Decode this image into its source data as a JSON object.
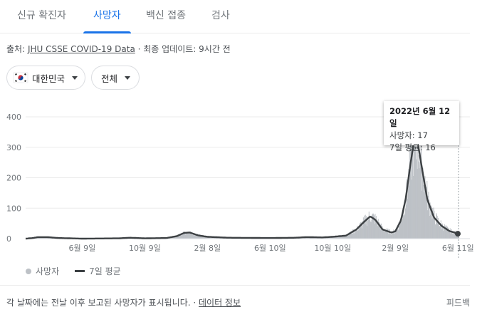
{
  "tabs": [
    {
      "label": "신규 확진자",
      "active": false
    },
    {
      "label": "사망자",
      "active": true
    },
    {
      "label": "백신 접종",
      "active": false
    },
    {
      "label": "검사",
      "active": false
    }
  ],
  "source": {
    "prefix": "출처: ",
    "link": "JHU CSSE COVID-19 Data",
    "updated": " · 최종 업데이트: 9시간 전"
  },
  "filters": {
    "region": "대한민국",
    "period": "전체"
  },
  "tooltip": {
    "date": "2022년 6월 12일",
    "deaths": "사망자: 17",
    "avg": "7일 평균: 16"
  },
  "legend": {
    "bars": "사망자",
    "line": "7일 평균"
  },
  "footer": {
    "note": "각 날짜에는 전날 이후 보고된 사망자가 표시됩니다. · ",
    "link": "데이터 정보",
    "feedback": "피드백"
  },
  "colors": {
    "accent": "#1a73e8",
    "bar": "#bdc1c6",
    "line": "#3c4043"
  },
  "chart_data": {
    "type": "bar",
    "series": [
      {
        "name": "사망자",
        "kind": "bar"
      },
      {
        "name": "7일 평균",
        "kind": "line"
      }
    ],
    "y_ticks": [
      "0",
      "100",
      "200",
      "300",
      "400"
    ],
    "ylim": [
      0,
      400
    ],
    "x_ticks": [
      "6월 9일",
      "10월 9일",
      "2월 8일",
      "6월 10일",
      "10월 10일",
      "2월 9일",
      "6월 11일"
    ],
    "x_tick_dates": [
      "2020-06-09",
      "2020-10-09",
      "2021-02-08",
      "2021-06-10",
      "2021-10-10",
      "2022-02-09",
      "2022-06-11"
    ],
    "xlim": [
      "2020-02-20",
      "2022-06-12"
    ],
    "avg_points": [
      [
        "2020-02-20",
        0
      ],
      [
        "2020-03-05",
        2
      ],
      [
        "2020-03-15",
        5
      ],
      [
        "2020-04-01",
        5
      ],
      [
        "2020-04-25",
        2
      ],
      [
        "2020-06-09",
        0
      ],
      [
        "2020-08-20",
        1
      ],
      [
        "2020-09-10",
        3
      ],
      [
        "2020-10-09",
        1
      ],
      [
        "2020-11-20",
        2
      ],
      [
        "2020-12-10",
        8
      ],
      [
        "2020-12-25",
        19
      ],
      [
        "2021-01-05",
        20
      ],
      [
        "2021-01-20",
        11
      ],
      [
        "2021-02-08",
        6
      ],
      [
        "2021-03-20",
        3
      ],
      [
        "2021-06-10",
        2
      ],
      [
        "2021-07-30",
        3
      ],
      [
        "2021-08-20",
        5
      ],
      [
        "2021-09-20",
        4
      ],
      [
        "2021-10-10",
        6
      ],
      [
        "2021-11-05",
        10
      ],
      [
        "2021-11-25",
        30
      ],
      [
        "2021-12-10",
        55
      ],
      [
        "2021-12-22",
        73
      ],
      [
        "2022-01-01",
        62
      ],
      [
        "2022-01-15",
        30
      ],
      [
        "2022-02-01",
        20
      ],
      [
        "2022-02-09",
        24
      ],
      [
        "2022-02-20",
        60
      ],
      [
        "2022-03-01",
        130
      ],
      [
        "2022-03-10",
        240
      ],
      [
        "2022-03-18",
        330
      ],
      [
        "2022-03-25",
        310
      ],
      [
        "2022-04-01",
        240
      ],
      [
        "2022-04-12",
        130
      ],
      [
        "2022-04-25",
        70
      ],
      [
        "2022-05-10",
        42
      ],
      [
        "2022-05-25",
        25
      ],
      [
        "2022-06-12",
        16
      ]
    ],
    "tooltip_point": {
      "date": "2022-06-12",
      "deaths": 17,
      "avg": 16
    }
  }
}
